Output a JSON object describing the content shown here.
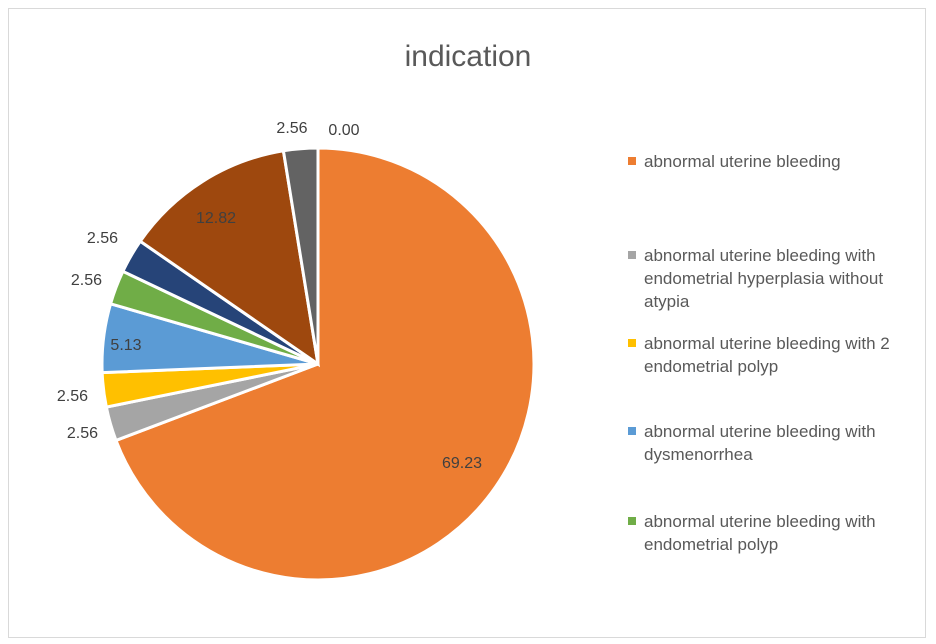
{
  "chart_data": {
    "type": "pie",
    "title": "indication",
    "legend_position": "right",
    "slices": [
      {
        "label": "abnormal uterine bleeding",
        "value": 69.23,
        "color": "#ed7d31",
        "data_label": "69.23",
        "in_legend": true
      },
      {
        "label": "abnormal uterine bleeding with  endometrial hyperplasia without atypia",
        "value": 2.56,
        "color": "#a5a5a5",
        "data_label": "2.56",
        "in_legend": true
      },
      {
        "label": "abnormal uterine bleeding with 2 endometrial polyp",
        "value": 2.56,
        "color": "#ffc000",
        "data_label": "2.56",
        "in_legend": true
      },
      {
        "label": "abnormal uterine bleeding with dysmenorrhea",
        "value": 5.13,
        "color": "#5b9bd5",
        "data_label": "5.13",
        "in_legend": true
      },
      {
        "label": "abnormal uterine bleeding with endometrial polyp",
        "value": 2.56,
        "color": "#70ad47",
        "data_label": "2.56",
        "in_legend": true
      },
      {
        "label": "",
        "value": 2.56,
        "color": "#264478",
        "data_label": "2.56",
        "in_legend": false
      },
      {
        "label": "",
        "value": 12.82,
        "color": "#9e480e",
        "data_label": "12.82",
        "in_legend": false
      },
      {
        "label": "",
        "value": 2.56,
        "color": "#636363",
        "data_label": "2.56",
        "in_legend": false
      },
      {
        "label": "",
        "value": 0.0,
        "color": "#997300",
        "data_label": "0.00",
        "in_legend": false
      }
    ]
  }
}
